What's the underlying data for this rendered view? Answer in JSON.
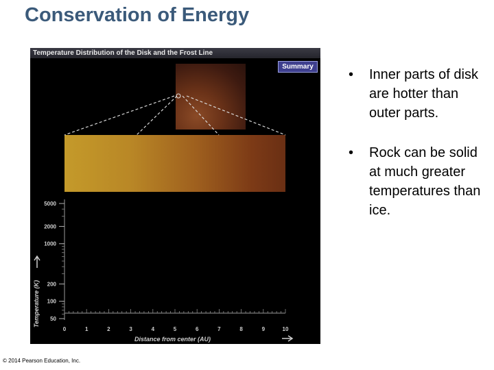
{
  "slide": {
    "title": "Conservation of Energy",
    "copyright": "© 2014 Pearson Education, Inc."
  },
  "panel": {
    "header": "Temperature Distribution of the Disk and the Frost Line",
    "summary_button": "Summary"
  },
  "bullets": [
    "Inner parts of disk are hotter than outer parts.",
    "Rock can be solid at much greater temperatures than ice."
  ],
  "chart_data": {
    "type": "line",
    "xlabel": "Distance from center (AU)",
    "ylabel": "Temperature (K)",
    "x_ticks": [
      "0",
      "1",
      "2",
      "3",
      "4",
      "5",
      "6",
      "7",
      "8",
      "9",
      "10"
    ],
    "y_ticks": [
      "5000",
      "2000",
      "1000",
      "200",
      "100",
      "50"
    ],
    "xlim": [
      0,
      10
    ],
    "ylim": [
      50,
      5000
    ],
    "y_scale": "log",
    "series": []
  }
}
